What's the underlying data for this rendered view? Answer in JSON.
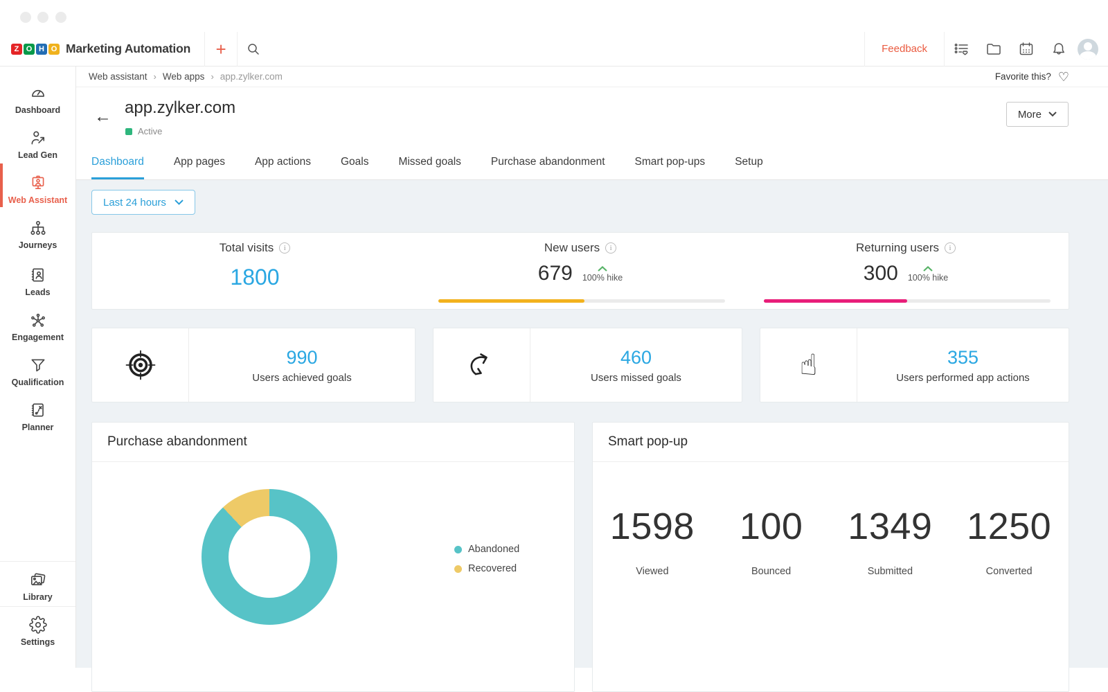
{
  "topbar": {
    "app_name": "Marketing Automation",
    "logo": {
      "tiles": [
        {
          "letter": "Z",
          "color": "#e42527"
        },
        {
          "letter": "O",
          "color": "#089949"
        },
        {
          "letter": "H",
          "color": "#226db4"
        },
        {
          "letter": "O",
          "color": "#f0b21d"
        }
      ]
    },
    "plus_label": "+",
    "feedback_label": "Feedback",
    "icons": [
      "list-heart-icon",
      "folder-icon",
      "calendar-icon",
      "bell-icon",
      "avatar"
    ]
  },
  "sidebar": {
    "items": [
      {
        "label": "Dashboard",
        "icon": "gauge-icon"
      },
      {
        "label": "Lead Gen",
        "icon": "lead-gen-icon"
      },
      {
        "label": "Web Assistant",
        "icon": "web-assistant-icon",
        "active": true
      },
      {
        "label": "Journeys",
        "icon": "journeys-icon"
      },
      {
        "label": "Leads",
        "icon": "leads-icon"
      },
      {
        "label": "Engagement",
        "icon": "engagement-icon"
      },
      {
        "label": "Qualification",
        "icon": "funnel-icon"
      },
      {
        "label": "Planner",
        "icon": "planner-icon"
      }
    ],
    "footer_items": [
      {
        "label": "Library",
        "icon": "library-icon"
      },
      {
        "label": "Settings",
        "icon": "gear-icon"
      }
    ],
    "active_color": "#e8604c"
  },
  "breadcrumb": {
    "items": [
      "Web assistant",
      "Web apps",
      "app.zylker.com"
    ],
    "separator": "›"
  },
  "favorite_label": "Favorite this?",
  "page_header": {
    "title": "app.zylker.com",
    "status": "Active",
    "more_label": "More"
  },
  "tabs": [
    "Dashboard",
    "App pages",
    "App actions",
    "Goals",
    "Missed goals",
    "Purchase abandonment",
    "Smart pop-ups",
    "Setup"
  ],
  "active_tab": "Dashboard",
  "date_filter": "Last 24 hours",
  "kpis": {
    "total_visits": {
      "label": "Total visits",
      "value": "1800"
    },
    "new_users": {
      "label": "New users",
      "value": "679",
      "hike": "100% hike",
      "bar_pct": 51,
      "bar_color": "#f2b21d"
    },
    "returning_users": {
      "label": "Returning users",
      "value": "300",
      "hike": "100% hike",
      "bar_pct": 50,
      "bar_color": "#e81e79"
    }
  },
  "goal_cards": [
    {
      "value": "990",
      "label": "Users achieved goals",
      "icon": "target-icon"
    },
    {
      "value": "460",
      "label": "Users missed goals",
      "icon": "missed-goal-arrow-icon"
    },
    {
      "value": "355",
      "label": "Users performed app actions",
      "icon": "pointing-hand-icon"
    }
  ],
  "panels": {
    "purchase": {
      "title": "Purchase abandonment",
      "legend": [
        {
          "label": "Abandoned",
          "color": "#57c3c7"
        },
        {
          "label": "Recovered",
          "color": "#eeca67"
        }
      ]
    },
    "smart_popup": {
      "title": "Smart pop-up",
      "stats": [
        {
          "value": "1598",
          "label": "Viewed"
        },
        {
          "value": "100",
          "label": "Bounced"
        },
        {
          "value": "1349",
          "label": "Submitted"
        },
        {
          "value": "1250",
          "label": "Converted"
        }
      ]
    }
  },
  "chart_data": {
    "type": "pie",
    "title": "Purchase abandonment",
    "labels": [
      "Abandoned",
      "Recovered"
    ],
    "values": [
      88,
      12
    ],
    "colors": [
      "#57c3c7",
      "#eeca67"
    ],
    "donut": true,
    "legend_position": "right"
  },
  "colors": {
    "accent_blue": "#2aa7e2",
    "accent_red": "#e8604c",
    "hike_green": "#58b368",
    "status_green": "#2eb67d"
  }
}
